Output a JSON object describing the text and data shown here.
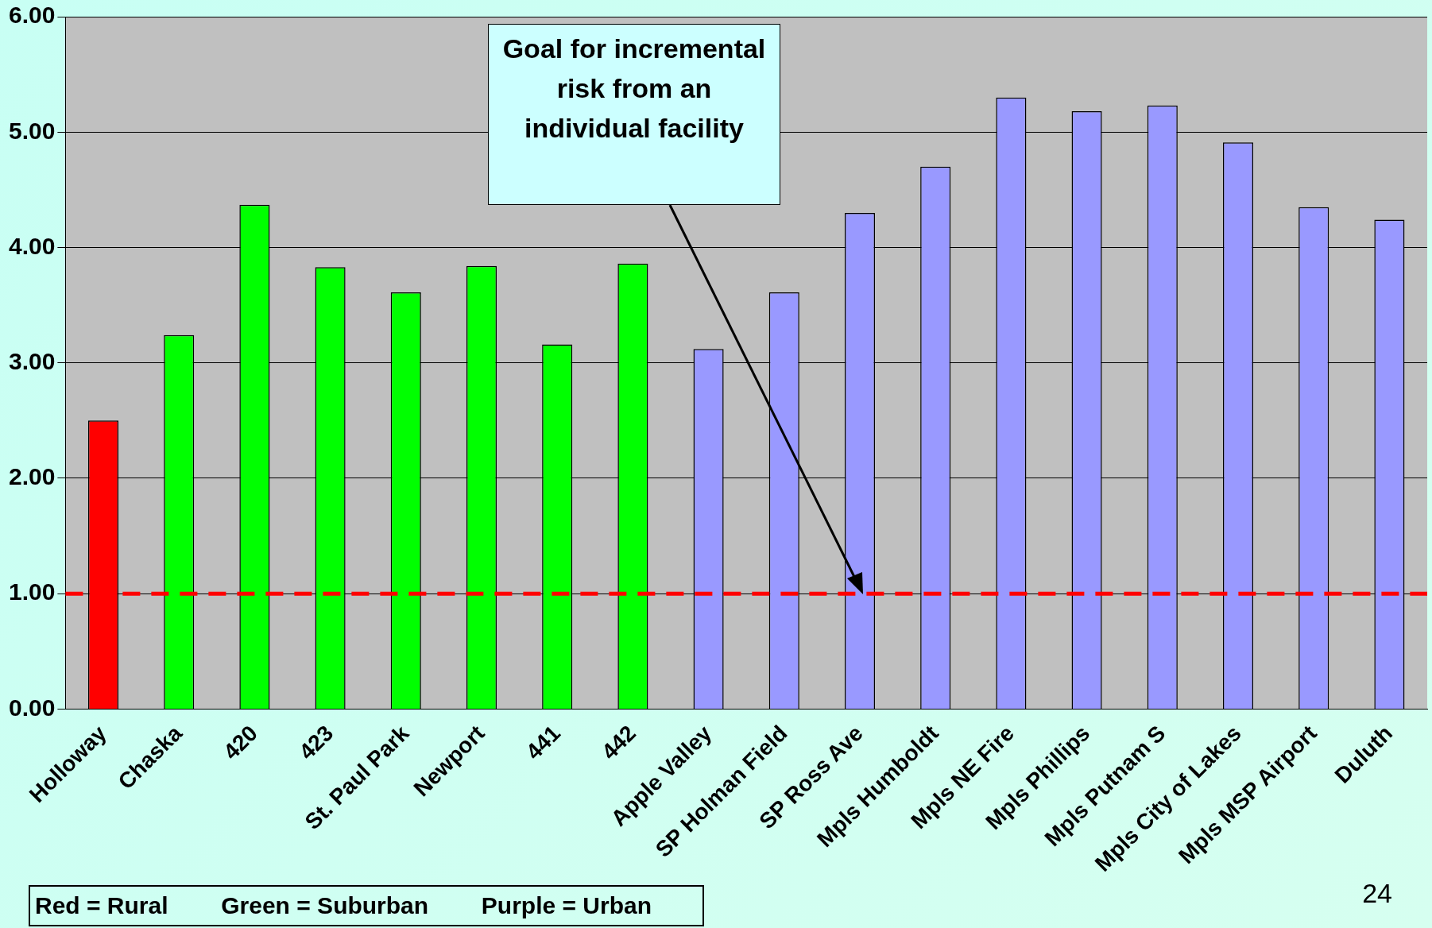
{
  "chart_data": {
    "type": "bar",
    "categories": [
      "Holloway",
      "Chaska",
      "420",
      "423",
      "St. Paul Park",
      "Newport",
      "441",
      "442",
      "Apple Valley",
      "SP Holman Field",
      "SP Ross Ave",
      "Mpls Humboldt",
      "Mpls NE Fire",
      "Mpls Phillips",
      "Mpls Putnam S",
      "Mpls City of Lakes",
      "Mpls MSP Airport",
      "Duluth"
    ],
    "values": [
      2.5,
      3.24,
      4.37,
      3.83,
      3.61,
      3.84,
      3.16,
      3.86,
      3.12,
      3.61,
      4.3,
      4.7,
      5.3,
      5.18,
      5.23,
      4.91,
      4.35,
      4.24
    ],
    "colors": [
      "#ff0000",
      "#00ff00",
      "#00ff00",
      "#00ff00",
      "#00ff00",
      "#00ff00",
      "#00ff00",
      "#00ff00",
      "#9999ff",
      "#9999ff",
      "#9999ff",
      "#9999ff",
      "#9999ff",
      "#9999ff",
      "#9999ff",
      "#9999ff",
      "#9999ff",
      "#9999ff"
    ],
    "ylim": [
      0,
      6
    ],
    "yticks": [
      {
        "value": 0,
        "label": "0.00"
      },
      {
        "value": 1,
        "label": "1.00"
      },
      {
        "value": 2,
        "label": "2.00"
      },
      {
        "value": 3,
        "label": "3.00"
      },
      {
        "value": 4,
        "label": "4.00"
      },
      {
        "value": 5,
        "label": "5.00"
      },
      {
        "value": 6,
        "label": "6.00"
      }
    ],
    "grid": "y",
    "legend": false,
    "ref_lines": [
      {
        "axis": "y",
        "value": 1,
        "color": "#ff0000",
        "line_style": "dashed"
      }
    ],
    "annotations": [
      "Goal for incremental risk from an individual facility",
      "Red = Rural        Green = Suburban        Purple = Urban",
      "24"
    ]
  }
}
